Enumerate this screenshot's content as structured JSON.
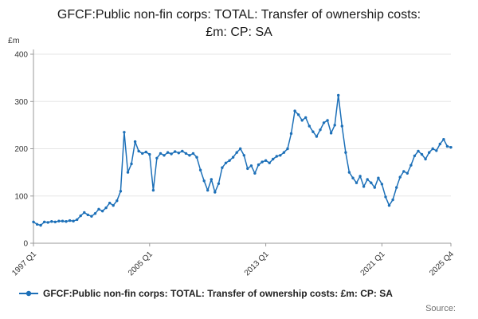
{
  "chart_data": {
    "type": "line",
    "title": "GFCF:Public non-fin corps: TOTAL: Transfer of ownership costs: £m: CP: SA",
    "legend": "GFCF:Public non-fin corps: TOTAL: Transfer of ownership costs: £m: CP: SA",
    "ylabel": "£m",
    "xlabel": "",
    "ylim": [
      0,
      400
    ],
    "y_ticks": [
      0,
      100,
      200,
      300,
      400
    ],
    "x_tick_labels": [
      "1997 Q1",
      "2005 Q1",
      "2013 Q1",
      "2021 Q1",
      "2025 Q4"
    ],
    "x_tick_indices": [
      0,
      32,
      64,
      96,
      115
    ],
    "start_period": "1997 Q1",
    "end_period": "2025 Q4",
    "frequency": "quarterly",
    "grid": "horizontal",
    "legend_position": "bottom-left",
    "line_color": "#1d70b8",
    "values": [
      45,
      40,
      38,
      45,
      44,
      46,
      45,
      47,
      47,
      46,
      48,
      47,
      50,
      58,
      65,
      60,
      57,
      63,
      72,
      68,
      75,
      85,
      80,
      90,
      110,
      235,
      150,
      168,
      215,
      195,
      190,
      193,
      188,
      112,
      180,
      190,
      186,
      192,
      189,
      194,
      191,
      195,
      190,
      186,
      190,
      182,
      155,
      132,
      112,
      135,
      108,
      126,
      160,
      170,
      175,
      182,
      192,
      200,
      186,
      158,
      164,
      148,
      166,
      172,
      175,
      170,
      178,
      184,
      186,
      192,
      200,
      232,
      280,
      272,
      260,
      266,
      248,
      236,
      226,
      240,
      255,
      260,
      233,
      250,
      313,
      248,
      192,
      150,
      138,
      128,
      142,
      120,
      135,
      128,
      118,
      138,
      125,
      98,
      80,
      92,
      118,
      140,
      152,
      148,
      165,
      185,
      195,
      188,
      178,
      192,
      200,
      196,
      210,
      220,
      205,
      203
    ]
  },
  "footer": {
    "source": "Source:"
  }
}
